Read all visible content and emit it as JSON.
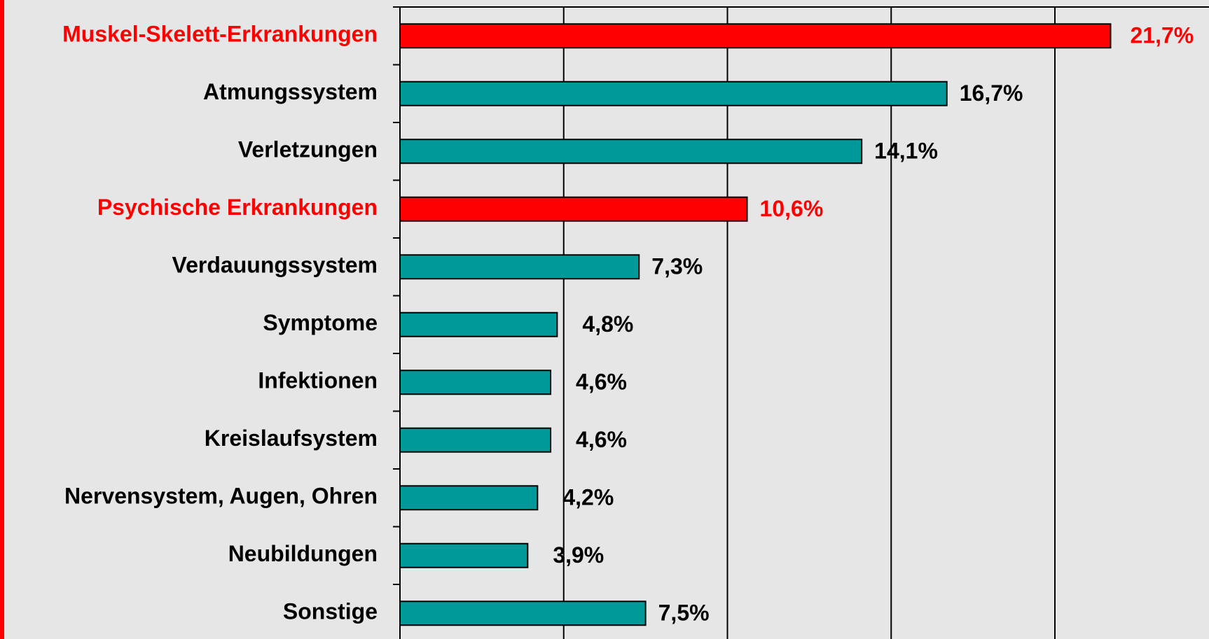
{
  "chart_data": {
    "type": "hbar",
    "categories": [
      "Muskel-Skelett-Erkrankungen",
      "Atmungssystem",
      "Verletzungen",
      "Psychische Erkrankungen",
      "Verdauungssystem",
      "Symptome",
      "Infektionen",
      "Kreislaufsystem",
      "Nervensystem, Augen, Ohren",
      "Neubildungen",
      "Sonstige"
    ],
    "values": [
      21.7,
      16.7,
      14.1,
      10.6,
      7.3,
      4.8,
      4.6,
      4.6,
      4.2,
      3.9,
      7.5
    ],
    "value_labels": [
      "21,7%",
      "16,7%",
      "14,1%",
      "10,6%",
      "7,3%",
      "4,8%",
      "4,6%",
      "4,6%",
      "4,2%",
      "3,9%",
      "7,5%"
    ],
    "colors": [
      "#ff0000",
      "#009999",
      "#009999",
      "#ff0000",
      "#009999",
      "#009999",
      "#009999",
      "#009999",
      "#009999",
      "#009999",
      "#009999"
    ],
    "label_colors": [
      "#ff0000",
      "#000000",
      "#000000",
      "#ff0000",
      "#000000",
      "#000000",
      "#000000",
      "#000000",
      "#000000",
      "#000000",
      "#000000"
    ],
    "xlim": [
      0,
      25
    ],
    "xticks": [
      0,
      5,
      10,
      15,
      20
    ],
    "grid": true
  }
}
